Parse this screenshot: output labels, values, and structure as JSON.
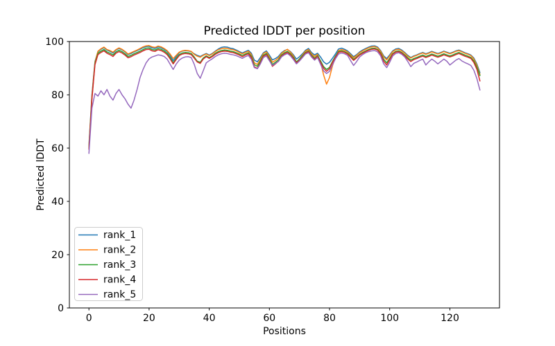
{
  "chart_data": {
    "type": "line",
    "title": "Predicted lDDT per position",
    "xlabel": "Positions",
    "ylabel": "Predicted lDDT",
    "xlim": [
      -6.5,
      136.5
    ],
    "ylim": [
      0,
      100
    ],
    "x_ticks": [
      0,
      20,
      40,
      60,
      80,
      100,
      120
    ],
    "y_ticks": [
      0,
      20,
      40,
      60,
      80,
      100
    ],
    "grid": false,
    "legend_position": "lower left",
    "x_start": 0,
    "x_step": 1,
    "series": [
      {
        "name": "rank_1",
        "color": "#1f77b4",
        "values": [
          61.0,
          80.0,
          92.5,
          96.2,
          97.1,
          97.7,
          96.8,
          96.3,
          95.7,
          96.8,
          97.4,
          96.9,
          96.1,
          95.1,
          95.5,
          96.1,
          96.6,
          97.1,
          97.7,
          98.1,
          98.2,
          97.6,
          97.4,
          98.0,
          97.7,
          97.1,
          96.3,
          94.8,
          92.8,
          94.3,
          95.8,
          96.4,
          96.6,
          96.5,
          96.2,
          95.4,
          94.8,
          94.4,
          95.0,
          95.5,
          94.9,
          95.5,
          96.4,
          97.2,
          97.8,
          98.0,
          97.9,
          97.5,
          97.3,
          96.8,
          96.2,
          95.7,
          96.2,
          96.7,
          95.6,
          93.0,
          92.4,
          94.0,
          95.8,
          96.5,
          94.9,
          93.1,
          93.6,
          94.4,
          95.8,
          96.6,
          97.0,
          96.2,
          95.0,
          93.4,
          94.3,
          95.4,
          96.7,
          97.4,
          95.9,
          95.0,
          95.6,
          94.2,
          92.4,
          91.5,
          92.2,
          93.8,
          95.4,
          97.2,
          97.5,
          97.1,
          96.5,
          95.4,
          94.3,
          95.1,
          96.1,
          96.8,
          97.4,
          97.9,
          98.3,
          98.4,
          97.9,
          96.6,
          94.6,
          93.6,
          95.0,
          96.5,
          97.2,
          97.4,
          96.8,
          95.9,
          94.8,
          94.0,
          94.6,
          95.0,
          95.5,
          95.9,
          95.4,
          95.8,
          96.3,
          95.9,
          95.5,
          95.9,
          96.4,
          96.0,
          95.6,
          96.0,
          96.5,
          96.8,
          96.3,
          95.8,
          95.4,
          94.9,
          93.8,
          91.5,
          88.3
        ]
      },
      {
        "name": "rank_2",
        "color": "#ff7f0e",
        "values": [
          60.5,
          79.5,
          92.2,
          96.4,
          97.3,
          97.9,
          97.0,
          96.6,
          96.0,
          97.0,
          97.6,
          97.1,
          96.3,
          95.3,
          95.8,
          96.3,
          96.8,
          97.4,
          98.0,
          98.4,
          98.5,
          98.0,
          97.8,
          98.3,
          98.0,
          97.4,
          96.6,
          95.3,
          93.6,
          94.8,
          96.0,
          96.5,
          96.7,
          96.6,
          96.3,
          95.2,
          94.5,
          94.1,
          94.8,
          95.3,
          94.7,
          95.3,
          96.2,
          96.9,
          97.3,
          97.5,
          97.4,
          97.1,
          96.9,
          96.5,
          95.9,
          95.4,
          95.9,
          96.4,
          95.1,
          92.0,
          91.4,
          93.3,
          95.5,
          96.1,
          94.3,
          92.2,
          92.9,
          93.8,
          95.5,
          96.4,
          97.1,
          96.0,
          94.6,
          92.1,
          93.5,
          95.0,
          96.4,
          97.0,
          95.4,
          94.4,
          95.2,
          92.5,
          87.5,
          84.0,
          86.5,
          91.0,
          94.3,
          96.6,
          97.0,
          96.7,
          96.1,
          95.0,
          93.9,
          94.8,
          95.8,
          96.5,
          97.1,
          97.6,
          98.0,
          98.1,
          97.6,
          96.3,
          94.2,
          93.1,
          94.6,
          96.2,
          96.9,
          97.1,
          96.5,
          95.6,
          94.5,
          93.8,
          94.4,
          94.8,
          95.3,
          95.7,
          95.2,
          95.6,
          96.1,
          95.7,
          95.3,
          95.7,
          96.2,
          95.8,
          95.4,
          95.8,
          96.3,
          96.6,
          96.1,
          95.6,
          95.2,
          94.7,
          93.4,
          91.0,
          87.6
        ]
      },
      {
        "name": "rank_3",
        "color": "#2ca02c",
        "values": [
          60.0,
          78.8,
          91.8,
          95.6,
          96.4,
          97.0,
          96.1,
          95.6,
          95.0,
          96.1,
          96.7,
          96.2,
          95.4,
          94.4,
          94.8,
          95.4,
          95.9,
          96.4,
          97.0,
          97.5,
          97.6,
          97.0,
          96.8,
          97.4,
          97.1,
          96.5,
          95.6,
          94.0,
          92.0,
          93.6,
          95.1,
          95.7,
          95.9,
          95.8,
          95.5,
          94.2,
          92.6,
          92.2,
          93.8,
          94.6,
          94.0,
          94.6,
          95.6,
          96.2,
          96.6,
          96.8,
          96.7,
          96.4,
          96.2,
          95.8,
          95.3,
          94.8,
          95.3,
          95.8,
          94.5,
          91.3,
          90.7,
          92.6,
          94.9,
          95.5,
          93.6,
          91.4,
          92.2,
          93.1,
          94.9,
          95.8,
          96.3,
          95.4,
          94.0,
          92.4,
          93.4,
          94.6,
          95.9,
          96.5,
          94.9,
          93.8,
          94.7,
          92.8,
          90.6,
          89.5,
          90.3,
          92.6,
          94.6,
          96.2,
          96.5,
          96.2,
          95.6,
          94.5,
          93.3,
          94.2,
          95.2,
          95.9,
          96.5,
          97.0,
          97.4,
          97.5,
          97.0,
          95.7,
          93.3,
          92.0,
          93.7,
          95.5,
          96.3,
          96.5,
          95.9,
          95.0,
          93.9,
          93.0,
          93.6,
          94.0,
          94.5,
          94.9,
          94.4,
          94.8,
          95.3,
          94.9,
          94.5,
          94.9,
          95.4,
          95.0,
          94.6,
          95.0,
          95.5,
          95.9,
          95.4,
          94.9,
          94.5,
          94.0,
          92.7,
          90.3,
          87.2
        ]
      },
      {
        "name": "rank_4",
        "color": "#d62728",
        "values": [
          59.5,
          78.3,
          91.3,
          95.1,
          95.9,
          96.5,
          95.6,
          95.1,
          94.4,
          95.6,
          96.2,
          95.7,
          94.9,
          93.9,
          94.3,
          94.9,
          95.4,
          95.9,
          96.5,
          97.0,
          97.1,
          96.5,
          96.3,
          96.9,
          96.6,
          96.0,
          95.1,
          93.5,
          91.6,
          93.2,
          94.7,
          95.3,
          95.5,
          95.4,
          95.1,
          93.8,
          92.3,
          91.8,
          93.4,
          94.3,
          93.7,
          94.3,
          95.2,
          95.8,
          96.2,
          96.4,
          96.3,
          96.0,
          95.8,
          95.4,
          94.9,
          94.3,
          94.9,
          95.4,
          94.0,
          90.5,
          89.9,
          92.0,
          94.5,
          95.1,
          93.1,
          90.7,
          91.6,
          92.6,
          94.5,
          95.4,
          95.9,
          95.0,
          93.6,
          92.0,
          93.0,
          94.2,
          95.6,
          96.2,
          94.5,
          93.4,
          94.4,
          92.2,
          90.0,
          88.8,
          89.8,
          92.2,
          94.2,
          95.9,
          96.2,
          95.9,
          95.3,
          94.1,
          92.9,
          93.9,
          94.9,
          95.6,
          96.2,
          96.7,
          97.1,
          97.2,
          96.7,
          95.3,
          92.6,
          91.2,
          93.2,
          95.2,
          96.0,
          96.2,
          95.6,
          94.6,
          93.4,
          92.5,
          93.2,
          93.6,
          94.1,
          94.5,
          94.0,
          94.4,
          94.9,
          94.5,
          94.1,
          94.5,
          95.0,
          94.6,
          94.2,
          94.6,
          95.1,
          95.5,
          95.0,
          94.5,
          94.1,
          93.6,
          92.1,
          89.5,
          85.2
        ]
      },
      {
        "name": "rank_5",
        "color": "#9467bd",
        "values": [
          58.0,
          75.0,
          80.5,
          79.5,
          81.5,
          80.0,
          82.0,
          79.5,
          78.0,
          80.5,
          82.0,
          80.0,
          78.5,
          76.5,
          75.0,
          78.0,
          82.0,
          86.5,
          89.5,
          92.0,
          93.5,
          94.2,
          94.6,
          95.0,
          94.8,
          94.4,
          93.4,
          91.5,
          89.5,
          91.5,
          93.0,
          93.8,
          94.2,
          94.3,
          94.0,
          91.5,
          88.0,
          86.2,
          89.0,
          92.0,
          92.8,
          93.5,
          94.4,
          95.0,
          95.4,
          95.6,
          95.5,
          95.2,
          95.0,
          94.7,
          94.2,
          93.7,
          94.3,
          94.8,
          93.3,
          90.2,
          89.8,
          91.6,
          94.0,
          94.6,
          92.8,
          91.0,
          91.8,
          92.5,
          94.2,
          95.0,
          95.5,
          94.6,
          93.2,
          91.6,
          92.7,
          94.0,
          95.3,
          95.8,
          94.2,
          93.0,
          94.0,
          91.5,
          89.0,
          88.0,
          88.8,
          91.3,
          93.6,
          95.3,
          95.7,
          95.4,
          94.8,
          92.8,
          91.0,
          92.5,
          94.2,
          95.1,
          95.8,
          96.2,
          96.5,
          96.6,
          96.1,
          94.6,
          91.6,
          90.2,
          92.2,
          94.6,
          95.5,
          95.8,
          95.2,
          94.2,
          92.5,
          90.6,
          91.8,
          92.3,
          92.9,
          93.4,
          91.2,
          92.4,
          93.4,
          92.6,
          91.6,
          92.5,
          93.4,
          92.6,
          91.2,
          92.1,
          93.0,
          93.6,
          92.7,
          92.1,
          91.6,
          91.0,
          89.2,
          86.0,
          81.8
        ]
      }
    ]
  }
}
